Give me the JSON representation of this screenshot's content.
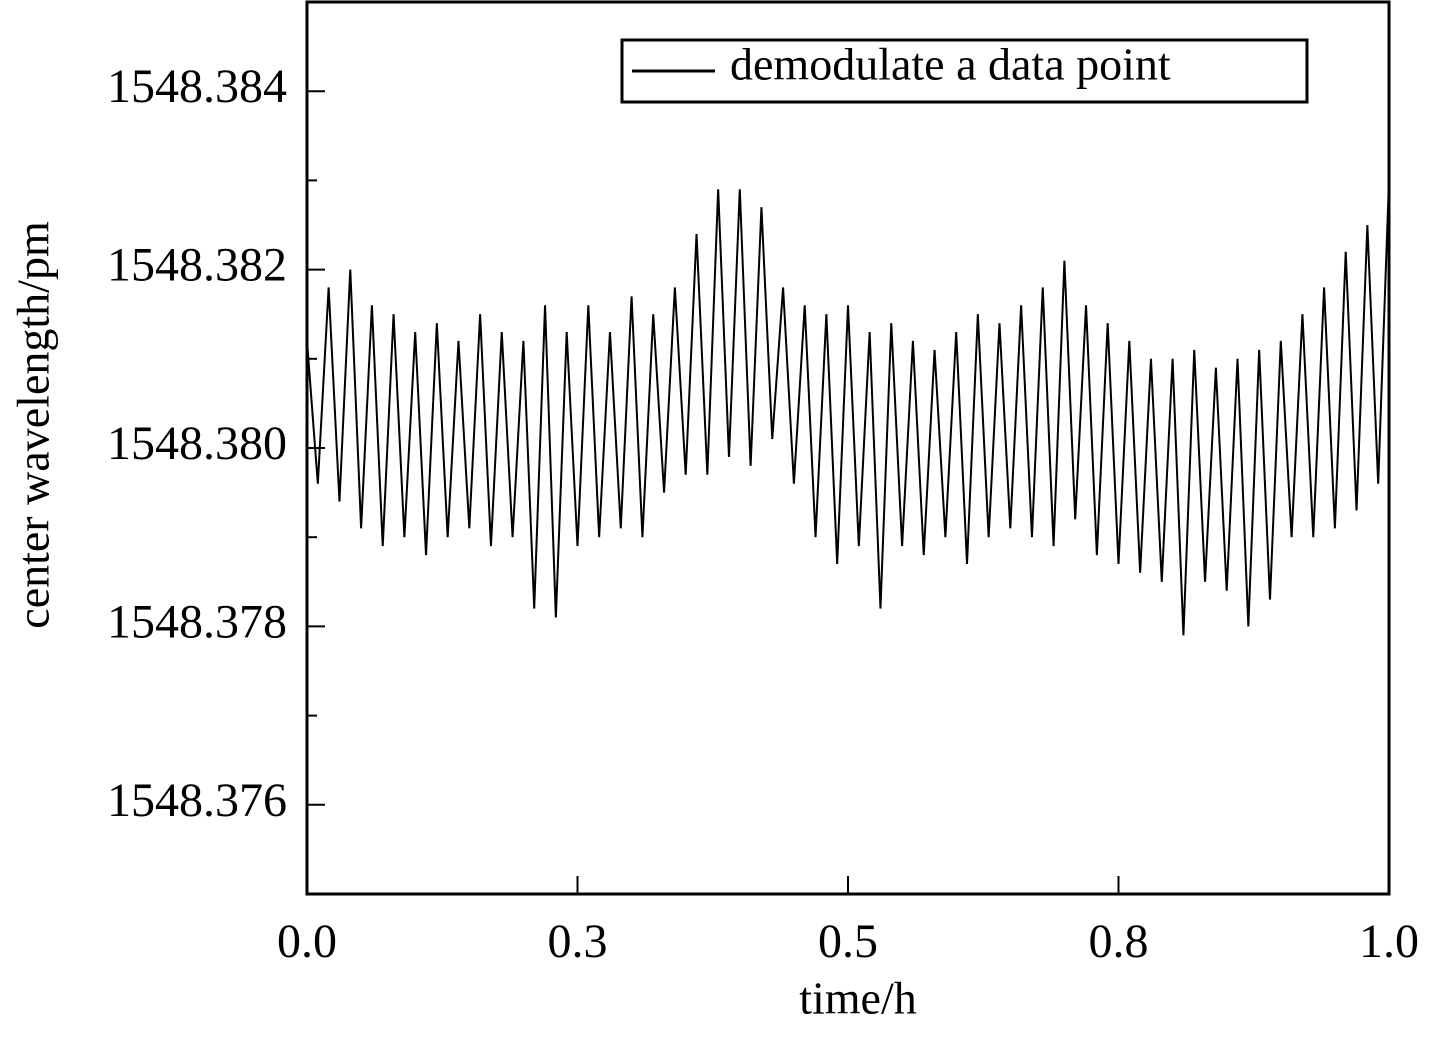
{
  "chart_data": {
    "type": "line",
    "x_label": "time/h",
    "y_label": "center wavelength/pm",
    "x": [
      0,
      0.01,
      0.02,
      0.03,
      0.04,
      0.05,
      0.06,
      0.07,
      0.08,
      0.09,
      0.1,
      0.11,
      0.12,
      0.13,
      0.14,
      0.15,
      0.16,
      0.17,
      0.18,
      0.19,
      0.2,
      0.21,
      0.22,
      0.23,
      0.24,
      0.25,
      0.26,
      0.27,
      0.28,
      0.29,
      0.3,
      0.31,
      0.32,
      0.33,
      0.34,
      0.35,
      0.36,
      0.37,
      0.38,
      0.39,
      0.4,
      0.41,
      0.42,
      0.43,
      0.44,
      0.45,
      0.46,
      0.47,
      0.48,
      0.49,
      0.5,
      0.51,
      0.52,
      0.53,
      0.54,
      0.55,
      0.56,
      0.57,
      0.58,
      0.59,
      0.6,
      0.61,
      0.62,
      0.63,
      0.64,
      0.65,
      0.66,
      0.67,
      0.68,
      0.69,
      0.7,
      0.71,
      0.72,
      0.73,
      0.74,
      0.75,
      0.76,
      0.77,
      0.78,
      0.79,
      0.8,
      0.81,
      0.82,
      0.83,
      0.84,
      0.85,
      0.86,
      0.87,
      0.88,
      0.89,
      0.9,
      0.91,
      0.92,
      0.93,
      0.94,
      0.95,
      0.96,
      0.97,
      0.98,
      0.99,
      1
    ],
    "series": [
      {
        "name": "demodulate a data point",
        "color": "#000000",
        "values": [
          1548.3812,
          1548.3796,
          1548.3818,
          1548.3794,
          1548.382,
          1548.3791,
          1548.3816,
          1548.3789,
          1548.3815,
          1548.379,
          1548.3813,
          1548.3788,
          1548.3814,
          1548.379,
          1548.3812,
          1548.3791,
          1548.3815,
          1548.3789,
          1548.3813,
          1548.379,
          1548.3812,
          1548.3782,
          1548.3816,
          1548.3781,
          1548.3813,
          1548.3789,
          1548.3816,
          1548.379,
          1548.3813,
          1548.3791,
          1548.3817,
          1548.379,
          1548.3815,
          1548.3795,
          1548.3818,
          1548.3797,
          1548.3824,
          1548.3797,
          1548.3829,
          1548.3799,
          1548.3829,
          1548.3798,
          1548.3827,
          1548.3801,
          1548.3818,
          1548.3796,
          1548.3816,
          1548.379,
          1548.3815,
          1548.3787,
          1548.3816,
          1548.3789,
          1548.3813,
          1548.3782,
          1548.3814,
          1548.3789,
          1548.3812,
          1548.3788,
          1548.3811,
          1548.379,
          1548.3813,
          1548.3787,
          1548.3815,
          1548.379,
          1548.3814,
          1548.3791,
          1548.3816,
          1548.379,
          1548.3818,
          1548.3789,
          1548.3821,
          1548.3792,
          1548.3816,
          1548.3788,
          1548.3814,
          1548.3787,
          1548.3812,
          1548.3786,
          1548.381,
          1548.3785,
          1548.381,
          1548.3779,
          1548.3811,
          1548.3785,
          1548.3809,
          1548.3784,
          1548.381,
          1548.378,
          1548.3811,
          1548.3783,
          1548.3812,
          1548.379,
          1548.3815,
          1548.379,
          1548.3818,
          1548.3791,
          1548.3822,
          1548.3793,
          1548.3825,
          1548.3796,
          1548.383
        ]
      }
    ],
    "xlim": [
      0,
      1
    ],
    "xticks": [
      {
        "value": 0,
        "label": "0.0"
      },
      {
        "value": 0.25,
        "label": "0.3"
      },
      0.5,
      {
        "value": 0.75,
        "label": "0.8"
      },
      {
        "value": 1,
        "label": "1.0"
      }
    ],
    "ylim": [
      1548.375,
      1548.385
    ],
    "yticks": [
      1548.376,
      1548.378,
      {
        "value": 1548.38,
        "label": "1548.380"
      },
      1548.382,
      1548.384
    ],
    "yticks_minor": [
      1548.377,
      1548.379,
      1548.381,
      1548.383
    ],
    "legend": "upper right",
    "grid": false
  }
}
